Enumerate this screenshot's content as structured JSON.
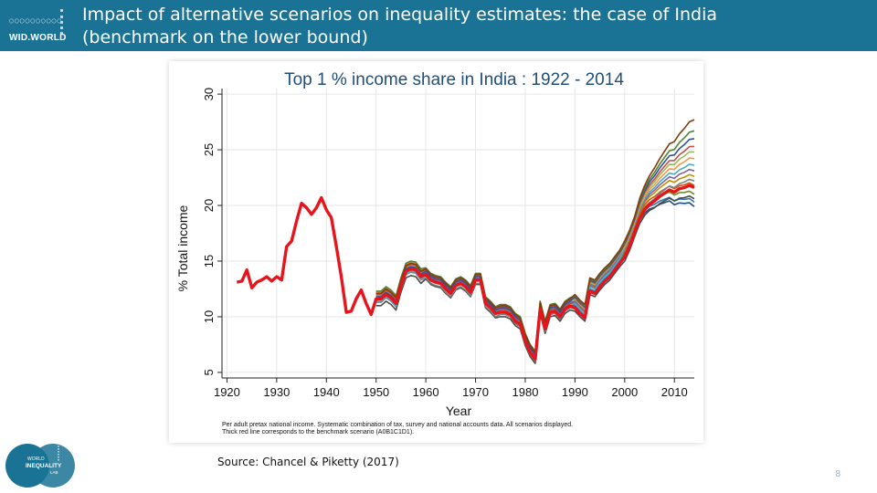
{
  "header": {
    "title_line1": "Impact of alternative scenarios on inequality estimates: the case of India",
    "title_line2": "(benchmark on the lower bound)",
    "logo_text": "WID.WORLD",
    "color": "#1a7394"
  },
  "lab_logo": {
    "line1": "WORLD",
    "line2": "INEQUALITY",
    "line3": "LAB"
  },
  "source": "Source: Chancel & Piketty (2017)",
  "page_number": "8",
  "chart_data": {
    "type": "line",
    "title": "Top 1 % income share in India : 1922 - 2014",
    "xlabel": "Year",
    "ylabel": "% Total income",
    "xlim": [
      1919,
      2014
    ],
    "ylim": [
      4.5,
      30.5
    ],
    "xticks": [
      1920,
      1930,
      1940,
      1950,
      1960,
      1970,
      1980,
      1990,
      2000,
      2010
    ],
    "yticks": [
      5,
      10,
      15,
      20,
      25,
      30
    ],
    "grid": true,
    "note_line1": "Per adult pretax national income. Systematic combination of tax, survey and national accounts data.  All scenarios displayed.",
    "note_line2": "Thick red line corresponds to the benchmark scenario (A0B1C1D1).",
    "benchmark": {
      "color": "#e8141c",
      "x": [
        1922,
        1923,
        1924,
        1925,
        1926,
        1927,
        1928,
        1929,
        1930,
        1931,
        1932,
        1933,
        1934,
        1935,
        1936,
        1937,
        1938,
        1939,
        1940,
        1941,
        1942,
        1943,
        1944,
        1945,
        1946,
        1947,
        1948,
        1949,
        1950,
        1951,
        1952,
        1953,
        1954,
        1955,
        1956,
        1957,
        1958,
        1959,
        1960,
        1961,
        1962,
        1963,
        1964,
        1965,
        1966,
        1967,
        1968,
        1969,
        1970,
        1971,
        1972,
        1973,
        1974,
        1975,
        1976,
        1977,
        1978,
        1979,
        1980,
        1981,
        1982,
        1983,
        1984,
        1985,
        1986,
        1987,
        1988,
        1989,
        1990,
        1991,
        1992,
        1993,
        1994,
        1995,
        1996,
        1997,
        1998,
        1999,
        2000,
        2001,
        2002,
        2003,
        2004,
        2005,
        2006,
        2007,
        2008,
        2009,
        2010,
        2011,
        2012,
        2013,
        2014
      ],
      "y": [
        13.1,
        13.2,
        14.2,
        12.6,
        13.1,
        13.3,
        13.6,
        13.2,
        13.6,
        13.3,
        16.3,
        16.8,
        18.6,
        20.2,
        19.8,
        19.2,
        19.8,
        20.7,
        19.6,
        18.9,
        16.3,
        13.6,
        10.4,
        10.5,
        11.6,
        12.4,
        11.2,
        10.2,
        11.6,
        11.6,
        12.0,
        11.7,
        11.2,
        12.8,
        14.1,
        14.3,
        14.2,
        13.6,
        13.8,
        13.3,
        13.1,
        13.0,
        12.5,
        12.1,
        12.8,
        13.0,
        12.7,
        12.2,
        13.3,
        13.3,
        11.2,
        10.8,
        10.3,
        10.4,
        10.4,
        10.2,
        9.6,
        9.3,
        7.8,
        6.8,
        6.2,
        10.7,
        8.9,
        10.4,
        10.5,
        10.0,
        10.7,
        11.0,
        10.8,
        10.3,
        9.9,
        12.3,
        12.1,
        12.7,
        13.2,
        13.6,
        14.2,
        14.8,
        15.4,
        16.4,
        17.6,
        18.8,
        19.6,
        20.1,
        20.4,
        20.8,
        21.1,
        21.4,
        21.2,
        21.5,
        21.6,
        21.8,
        21.6
      ]
    },
    "scenarios": [
      {
        "color": "#1f4e79",
        "offsets": [
          0,
          0,
          0,
          0,
          0
        ],
        "end": 19.9
      },
      {
        "color": "#2e75b6",
        "offsets": [
          0.3,
          0.2,
          0.3,
          0.2,
          0.2
        ],
        "end": 20.3
      },
      {
        "color": "#4a4a4a",
        "offsets": [
          -0.6,
          -0.4,
          -0.4,
          -0.3,
          -0.4
        ],
        "end": 20.6
      },
      {
        "color": "#6b8e23",
        "offsets": [
          0.4,
          0.3,
          0.5,
          0.4,
          0.4
        ],
        "end": 21.0
      },
      {
        "color": "#c55a11",
        "offsets": [
          0.2,
          0.1,
          0.2,
          0.5,
          0.5
        ],
        "end": 21.8
      },
      {
        "color": "#7f7f7f",
        "offsets": [
          -0.3,
          -0.3,
          -0.2,
          -0.1,
          0.0
        ],
        "end": 22.2
      },
      {
        "color": "#bf9000",
        "offsets": [
          0.5,
          0.4,
          0.6,
          0.7,
          0.6
        ],
        "end": 22.6
      },
      {
        "color": "#8064a2",
        "offsets": [
          0.1,
          0.2,
          0.3,
          0.6,
          0.7
        ],
        "end": 23.1
      },
      {
        "color": "#4bacc6",
        "offsets": [
          -0.2,
          -0.1,
          0.0,
          0.4,
          0.8
        ],
        "end": 23.6
      },
      {
        "color": "#f79646",
        "offsets": [
          0.6,
          0.5,
          0.6,
          0.9,
          0.9
        ],
        "end": 24.2
      },
      {
        "color": "#9bbb59",
        "offsets": [
          0.3,
          0.3,
          0.4,
          0.8,
          1.0
        ],
        "end": 24.8
      },
      {
        "color": "#c0504d",
        "offsets": [
          0.4,
          0.4,
          0.5,
          0.9,
          1.1
        ],
        "end": 25.3
      },
      {
        "color": "#2f5597",
        "offsets": [
          0.2,
          0.3,
          0.4,
          1.0,
          1.2
        ],
        "end": 26.0
      },
      {
        "color": "#548235",
        "offsets": [
          0.7,
          0.6,
          0.7,
          1.1,
          1.3
        ],
        "end": 26.7
      },
      {
        "color": "#843c0c",
        "offsets": [
          0.5,
          0.5,
          0.6,
          1.2,
          1.4
        ],
        "end": 27.7
      }
    ]
  }
}
